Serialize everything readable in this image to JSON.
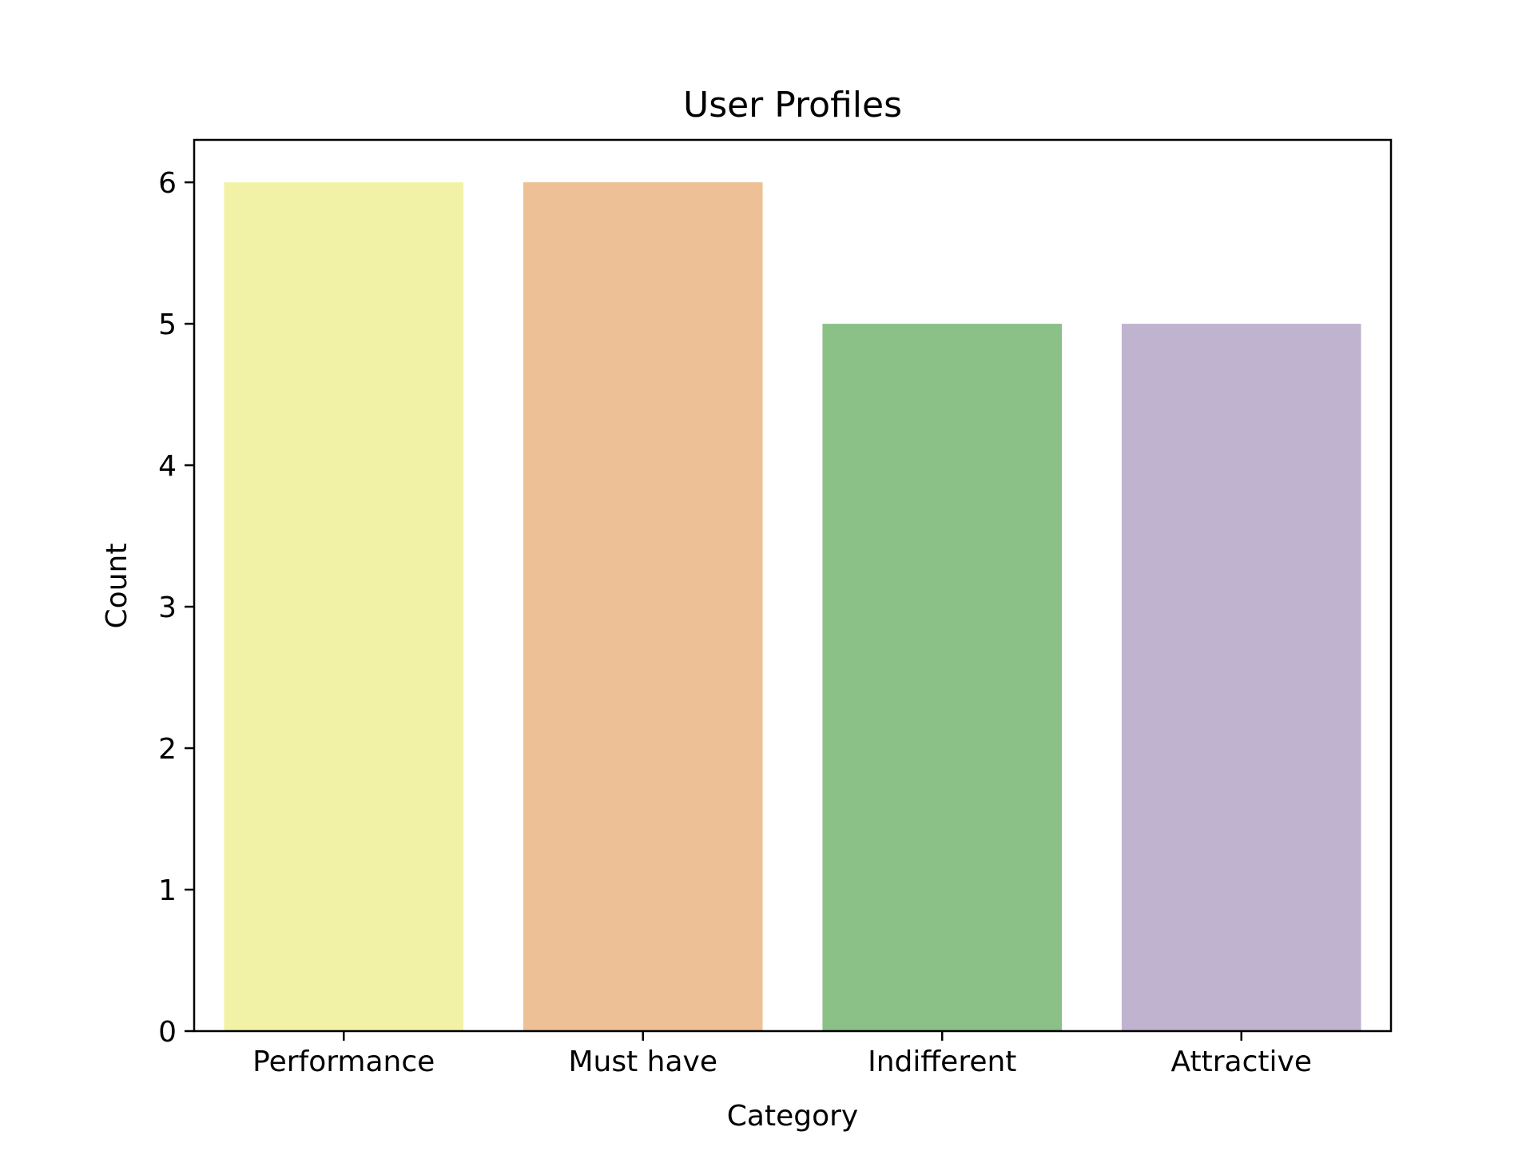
{
  "chart_data": {
    "type": "bar",
    "title": "User Profiles",
    "xlabel": "Category",
    "ylabel": "Count",
    "categories": [
      "Performance",
      "Must have",
      "Indifferent",
      "Attractive"
    ],
    "values": [
      6,
      6,
      5,
      5
    ],
    "colors": [
      "#f1f2a6",
      "#edc096",
      "#8bc087",
      "#c0b3cf"
    ],
    "ylim": [
      0,
      6.3
    ],
    "yticks": [
      0,
      1,
      2,
      3,
      4,
      5,
      6
    ],
    "grid": false,
    "legend": "none"
  }
}
